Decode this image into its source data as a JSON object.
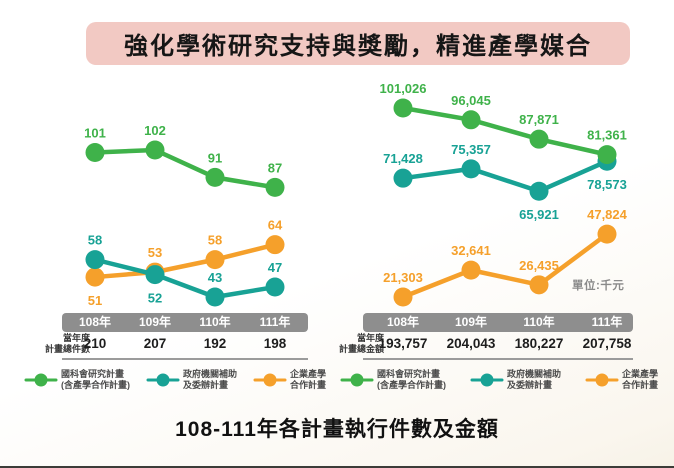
{
  "banner": {
    "title": "強化學術研究支持與獎勵，精進產學媒合"
  },
  "footer_title": "108-111年各計畫執行件數及金額",
  "unit_label": "單位:千元",
  "colors": {
    "green": "#3fb24a",
    "teal": "#18a295",
    "orange": "#f5a02b",
    "axis_bar": "#8e8e8e",
    "banner_pink": "#f2c9c3"
  },
  "legend_items": [
    {
      "color_key": "green",
      "line1": "國科會研究計畫",
      "line2": "(含產學合作計畫)"
    },
    {
      "color_key": "teal",
      "line1": "政府機關補助",
      "line2": "及委辦計畫"
    },
    {
      "color_key": "orange",
      "line1": "企業產學",
      "line2": "合作計畫"
    }
  ],
  "chart_data": [
    {
      "type": "line",
      "title": "當年度計畫總件數",
      "categories": [
        "108年",
        "109年",
        "110年",
        "111年"
      ],
      "grid": false,
      "legend_position": "bottom",
      "series": [
        {
          "name": "國科會研究計畫(含產學合作計畫)",
          "color_key": "green",
          "values": [
            101,
            102,
            91,
            87
          ],
          "labels": [
            "101",
            "102",
            "91",
            "87"
          ]
        },
        {
          "name": "政府機關補助及委辦計畫",
          "color_key": "teal",
          "values": [
            58,
            52,
            43,
            47
          ],
          "labels": [
            "58",
            "52",
            "43",
            "47"
          ]
        },
        {
          "name": "企業產學合作計畫",
          "color_key": "orange",
          "values": [
            51,
            53,
            58,
            64
          ],
          "labels": [
            "51",
            "53",
            "58",
            "64"
          ]
        }
      ],
      "totals": {
        "label_line1": "當年度",
        "label_line2": "計畫總件數",
        "values": [
          "210",
          "207",
          "192",
          "198"
        ]
      }
    },
    {
      "type": "line",
      "title": "當年度計畫總金額",
      "unit": "單位:千元",
      "categories": [
        "108年",
        "109年",
        "110年",
        "111年"
      ],
      "grid": false,
      "legend_position": "bottom",
      "series": [
        {
          "name": "國科會研究計畫(含產學合作計畫)",
          "color_key": "green",
          "values": [
            101026,
            96045,
            87871,
            81361
          ],
          "labels": [
            "101,026",
            "96,045",
            "87,871",
            "81,361"
          ]
        },
        {
          "name": "政府機關補助及委辦計畫",
          "color_key": "teal",
          "values": [
            71428,
            75357,
            65921,
            78573
          ],
          "labels": [
            "71,428",
            "75,357",
            "65,921",
            "78,573"
          ]
        },
        {
          "name": "企業產學合作計畫",
          "color_key": "orange",
          "values": [
            21303,
            32641,
            26435,
            47824
          ],
          "labels": [
            "21,303",
            "32,641",
            "26,435",
            "47,824"
          ]
        }
      ],
      "totals": {
        "label_line1": "當年度",
        "label_line2": "計畫總金額",
        "values": [
          "193,757",
          "204,043",
          "180,227",
          "207,758"
        ]
      }
    }
  ]
}
